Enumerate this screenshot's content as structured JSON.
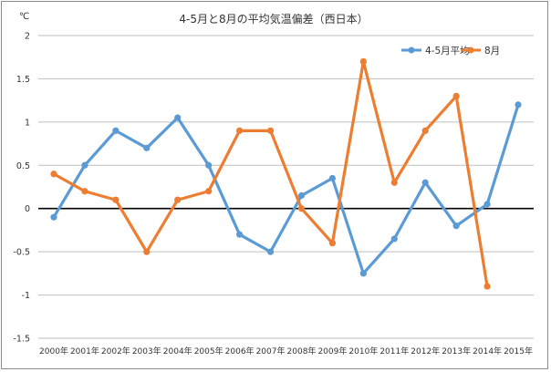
{
  "chart_data": {
    "type": "line",
    "title": "4-5月と8月の平均気温偏差（西日本）",
    "unit_label": "℃",
    "ylim": [
      -1.5,
      2
    ],
    "yticks": [
      "2",
      "1.5",
      "1",
      "0.5",
      "0",
      "-0.5",
      "-1",
      "-1.5"
    ],
    "grid": true,
    "legend_position": "top-right",
    "categories": [
      "2000年",
      "2001年",
      "2002年",
      "2003年",
      "2004年",
      "2005年",
      "2006年",
      "2007年",
      "2008年",
      "2009年",
      "2010年",
      "2011年",
      "2012年",
      "2013年",
      "2014年",
      "2015年"
    ],
    "series": [
      {
        "name": "4-5月平均",
        "color": "#5b9bd5",
        "values": [
          -0.1,
          0.5,
          0.9,
          0.7,
          1.05,
          0.5,
          -0.3,
          -0.5,
          0.15,
          0.35,
          -0.75,
          -0.35,
          0.3,
          -0.2,
          0.05,
          1.2
        ]
      },
      {
        "name": "8月",
        "color": "#ed7d31",
        "values": [
          0.4,
          0.2,
          0.1,
          -0.5,
          0.1,
          0.2,
          0.9,
          0.9,
          0.0,
          -0.4,
          1.7,
          0.3,
          0.9,
          1.3,
          -0.9,
          null
        ]
      }
    ]
  }
}
